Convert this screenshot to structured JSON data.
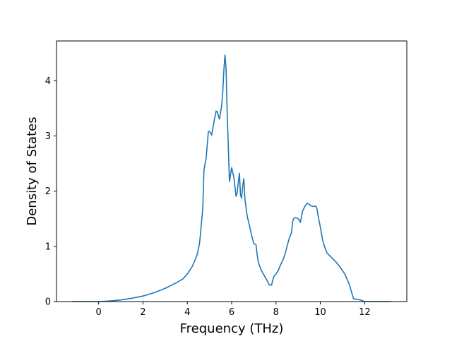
{
  "chart_data": {
    "type": "line",
    "title": "",
    "xlabel": "Frequency (THz)",
    "ylabel": "Density of States",
    "xlim": [
      -1.9,
      13.9
    ],
    "ylim": [
      0,
      4.72
    ],
    "grid": false,
    "legend": "none",
    "line_color": "#1f77b4",
    "x_ticks": [
      0,
      2,
      4,
      6,
      8,
      10,
      12
    ],
    "y_ticks": [
      0,
      1,
      2,
      3,
      4
    ],
    "series": [
      {
        "x": [
          -1.2,
          -0.5,
          0.0,
          0.5,
          1.0,
          1.5,
          2.0,
          2.5,
          3.0,
          3.5,
          3.8,
          4.0,
          4.2,
          4.35,
          4.45,
          4.5,
          4.55,
          4.6,
          4.7,
          4.75,
          4.85,
          4.95,
          5.0,
          5.1,
          5.2,
          5.3,
          5.35,
          5.45,
          5.55,
          5.6,
          5.65,
          5.7,
          5.75,
          5.8,
          5.85,
          5.9,
          6.0,
          6.1,
          6.2,
          6.25,
          6.35,
          6.4,
          6.45,
          6.5,
          6.55,
          6.6,
          6.7,
          6.8,
          6.9,
          7.0,
          7.1,
          7.15,
          7.2,
          7.3,
          7.4,
          7.5,
          7.6,
          7.7,
          7.8,
          7.85,
          7.9,
          8.0,
          8.1,
          8.2,
          8.3,
          8.4,
          8.5,
          8.6,
          8.7,
          8.75,
          8.8,
          8.85,
          8.9,
          9.0,
          9.1,
          9.2,
          9.3,
          9.4,
          9.5,
          9.6,
          9.7,
          9.8,
          9.85,
          9.9,
          10.0,
          10.1,
          10.2,
          10.3,
          10.5,
          10.7,
          10.9,
          11.1,
          11.3,
          11.4,
          11.5,
          11.8,
          12.0,
          12.3,
          13.2
        ],
        "y": [
          0.0,
          0.0,
          0.0,
          0.01,
          0.03,
          0.06,
          0.1,
          0.16,
          0.24,
          0.34,
          0.41,
          0.5,
          0.62,
          0.75,
          0.86,
          0.95,
          1.05,
          1.25,
          1.7,
          2.38,
          2.6,
          3.08,
          3.08,
          3.02,
          3.25,
          3.45,
          3.44,
          3.3,
          3.55,
          3.8,
          4.2,
          4.47,
          4.2,
          3.4,
          2.8,
          2.17,
          2.43,
          2.25,
          1.9,
          1.98,
          2.33,
          1.92,
          1.88,
          2.1,
          2.23,
          1.85,
          1.55,
          1.38,
          1.2,
          1.05,
          1.03,
          0.85,
          0.72,
          0.6,
          0.52,
          0.45,
          0.38,
          0.3,
          0.3,
          0.38,
          0.45,
          0.5,
          0.56,
          0.66,
          0.74,
          0.85,
          1.0,
          1.15,
          1.25,
          1.45,
          1.5,
          1.52,
          1.52,
          1.5,
          1.44,
          1.64,
          1.72,
          1.78,
          1.76,
          1.73,
          1.72,
          1.73,
          1.68,
          1.55,
          1.35,
          1.12,
          0.98,
          0.88,
          0.8,
          0.72,
          0.62,
          0.5,
          0.32,
          0.18,
          0.05,
          0.03,
          0.0,
          0.0,
          0.0
        ]
      }
    ]
  }
}
